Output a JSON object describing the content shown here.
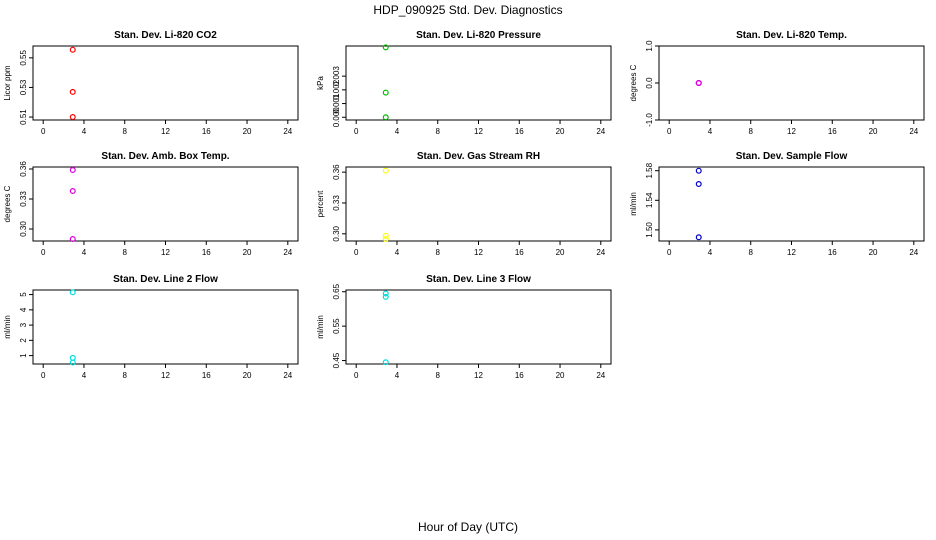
{
  "figure": {
    "title": "HDP_090925  Std. Dev. Diagnostics",
    "xlabel": "Hour of Day (UTC)"
  },
  "chart_data": [
    {
      "type": "scatter",
      "title": "Stan. Dev. Li-820 CO2",
      "ylabel": "Licor ppm",
      "color": "#ff0000",
      "xlim": [
        0,
        24
      ],
      "xticks": [
        "0",
        "4",
        "8",
        "12",
        "16",
        "20",
        "24"
      ],
      "ylim": [
        0.508,
        0.558
      ],
      "yticks": [
        "0.51",
        "0.53",
        "0.55"
      ],
      "x": [
        2.9,
        2.9,
        2.9
      ],
      "y": [
        0.5555,
        0.527,
        0.51
      ]
    },
    {
      "type": "scatter",
      "title": "Stan. Dev. Li-820 Pressure",
      "ylabel": "kPa",
      "color": "#00bb00",
      "xlim": [
        0,
        24
      ],
      "xticks": [
        "0",
        "4",
        "8",
        "12",
        "16",
        "20",
        "24"
      ],
      "ylim": [
        -0.0002,
        0.0052
      ],
      "yticks": [
        "0.000",
        "0.001",
        "0.002",
        "0.003"
      ],
      "x": [
        2.9,
        2.9,
        2.9
      ],
      "y": [
        0.0051,
        0.0018,
        0.0
      ]
    },
    {
      "type": "scatter",
      "title": "Stan. Dev. Li-820 Temp.",
      "ylabel": "degrees C",
      "color": "#dd00dd",
      "xlim": [
        0,
        24
      ],
      "xticks": [
        "0",
        "4",
        "8",
        "12",
        "16",
        "20",
        "24"
      ],
      "ylim": [
        -1.0,
        1.0
      ],
      "yticks": [
        "-1.0",
        "0.0",
        "1.0"
      ],
      "x": [
        2.9,
        2.9,
        2.9
      ],
      "y": [
        0.0,
        0.0,
        0.0
      ]
    },
    {
      "type": "scatter",
      "title": "Stan. Dev. Amb. Box Temp.",
      "ylabel": "degrees C",
      "color": "#dd00dd",
      "xlim": [
        0,
        24
      ],
      "xticks": [
        "0",
        "4",
        "8",
        "12",
        "16",
        "20",
        "24"
      ],
      "ylim": [
        0.288,
        0.362
      ],
      "yticks": [
        "0.30",
        "0.33",
        "0.36"
      ],
      "x": [
        2.9,
        2.9,
        2.9
      ],
      "y": [
        0.359,
        0.338,
        0.29
      ]
    },
    {
      "type": "scatter",
      "title": "Stan. Dev. Gas Stream RH",
      "ylabel": "percent",
      "color": "#ffff00",
      "xlim": [
        0,
        24
      ],
      "xticks": [
        "0",
        "4",
        "8",
        "12",
        "16",
        "20",
        "24"
      ],
      "ylim": [
        0.293,
        0.365
      ],
      "yticks": [
        "0.30",
        "0.33",
        "0.36"
      ],
      "x": [
        2.9,
        2.9,
        2.9
      ],
      "y": [
        0.3615,
        0.298,
        0.295
      ]
    },
    {
      "type": "scatter",
      "title": "Stan. Dev. Sample Flow",
      "ylabel": "ml/min",
      "color": "#0000cc",
      "xlim": [
        0,
        24
      ],
      "xticks": [
        "0",
        "4",
        "8",
        "12",
        "16",
        "20",
        "24"
      ],
      "ylim": [
        1.485,
        1.585
      ],
      "yticks": [
        "1.50",
        "1.54",
        "1.58"
      ],
      "x": [
        2.9,
        2.9,
        2.9
      ],
      "y": [
        1.58,
        1.562,
        1.49
      ]
    },
    {
      "type": "scatter",
      "title": "Stan. Dev. Line 2 Flow",
      "ylabel": "ml/min",
      "color": "#00dddd",
      "xlim": [
        0,
        24
      ],
      "xticks": [
        "0",
        "4",
        "8",
        "12",
        "16",
        "20",
        "24"
      ],
      "ylim": [
        0.45,
        5.3
      ],
      "yticks": [
        "1",
        "2",
        "3",
        "4",
        "5"
      ],
      "x": [
        2.9,
        2.9,
        2.9
      ],
      "y": [
        5.15,
        0.85,
        0.55
      ]
    },
    {
      "type": "scatter",
      "title": "Stan. Dev. Line 3 Flow",
      "ylabel": "ml/min",
      "color": "#00dddd",
      "xlim": [
        0,
        24
      ],
      "xticks": [
        "0",
        "4",
        "8",
        "12",
        "16",
        "20",
        "24"
      ],
      "ylim": [
        0.44,
        0.655
      ],
      "yticks": [
        "0.45",
        "0.55",
        "0.65"
      ],
      "x": [
        2.9,
        2.9,
        2.9
      ],
      "y": [
        0.645,
        0.635,
        0.445
      ]
    }
  ]
}
